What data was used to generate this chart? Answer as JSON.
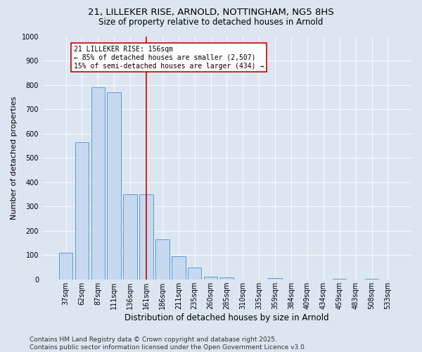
{
  "title_line1": "21, LILLEKER RISE, ARNOLD, NOTTINGHAM, NG5 8HS",
  "title_line2": "Size of property relative to detached houses in Arnold",
  "xlabel": "Distribution of detached houses by size in Arnold",
  "ylabel": "Number of detached properties",
  "bar_labels": [
    "37sqm",
    "62sqm",
    "87sqm",
    "111sqm",
    "136sqm",
    "161sqm",
    "186sqm",
    "211sqm",
    "235sqm",
    "260sqm",
    "285sqm",
    "310sqm",
    "335sqm",
    "359sqm",
    "384sqm",
    "409sqm",
    "434sqm",
    "459sqm",
    "483sqm",
    "508sqm",
    "533sqm"
  ],
  "bar_values": [
    110,
    565,
    790,
    770,
    350,
    350,
    165,
    95,
    50,
    12,
    8,
    0,
    0,
    5,
    0,
    0,
    0,
    3,
    0,
    3,
    0
  ],
  "bar_color": "#c6d9f0",
  "bar_edge_color": "#5b9bd5",
  "vline_x": 5,
  "vline_color": "#cc0000",
  "annotation_text": "21 LILLEKER RISE: 156sqm\n← 85% of detached houses are smaller (2,507)\n15% of semi-detached houses are larger (434) →",
  "annotation_box_color": "#ffffff",
  "annotation_box_edge": "#cc0000",
  "ylim": [
    0,
    1000
  ],
  "yticks": [
    0,
    100,
    200,
    300,
    400,
    500,
    600,
    700,
    800,
    900,
    1000
  ],
  "background_color": "#dce6f1",
  "plot_bg_color": "#dce6f1",
  "footer": "Contains HM Land Registry data © Crown copyright and database right 2025.\nContains public sector information licensed under the Open Government Licence v3.0.",
  "title_fontsize": 9.5,
  "subtitle_fontsize": 8.5,
  "axis_label_fontsize": 8,
  "tick_fontsize": 7,
  "annotation_fontsize": 7,
  "footer_fontsize": 6.5
}
